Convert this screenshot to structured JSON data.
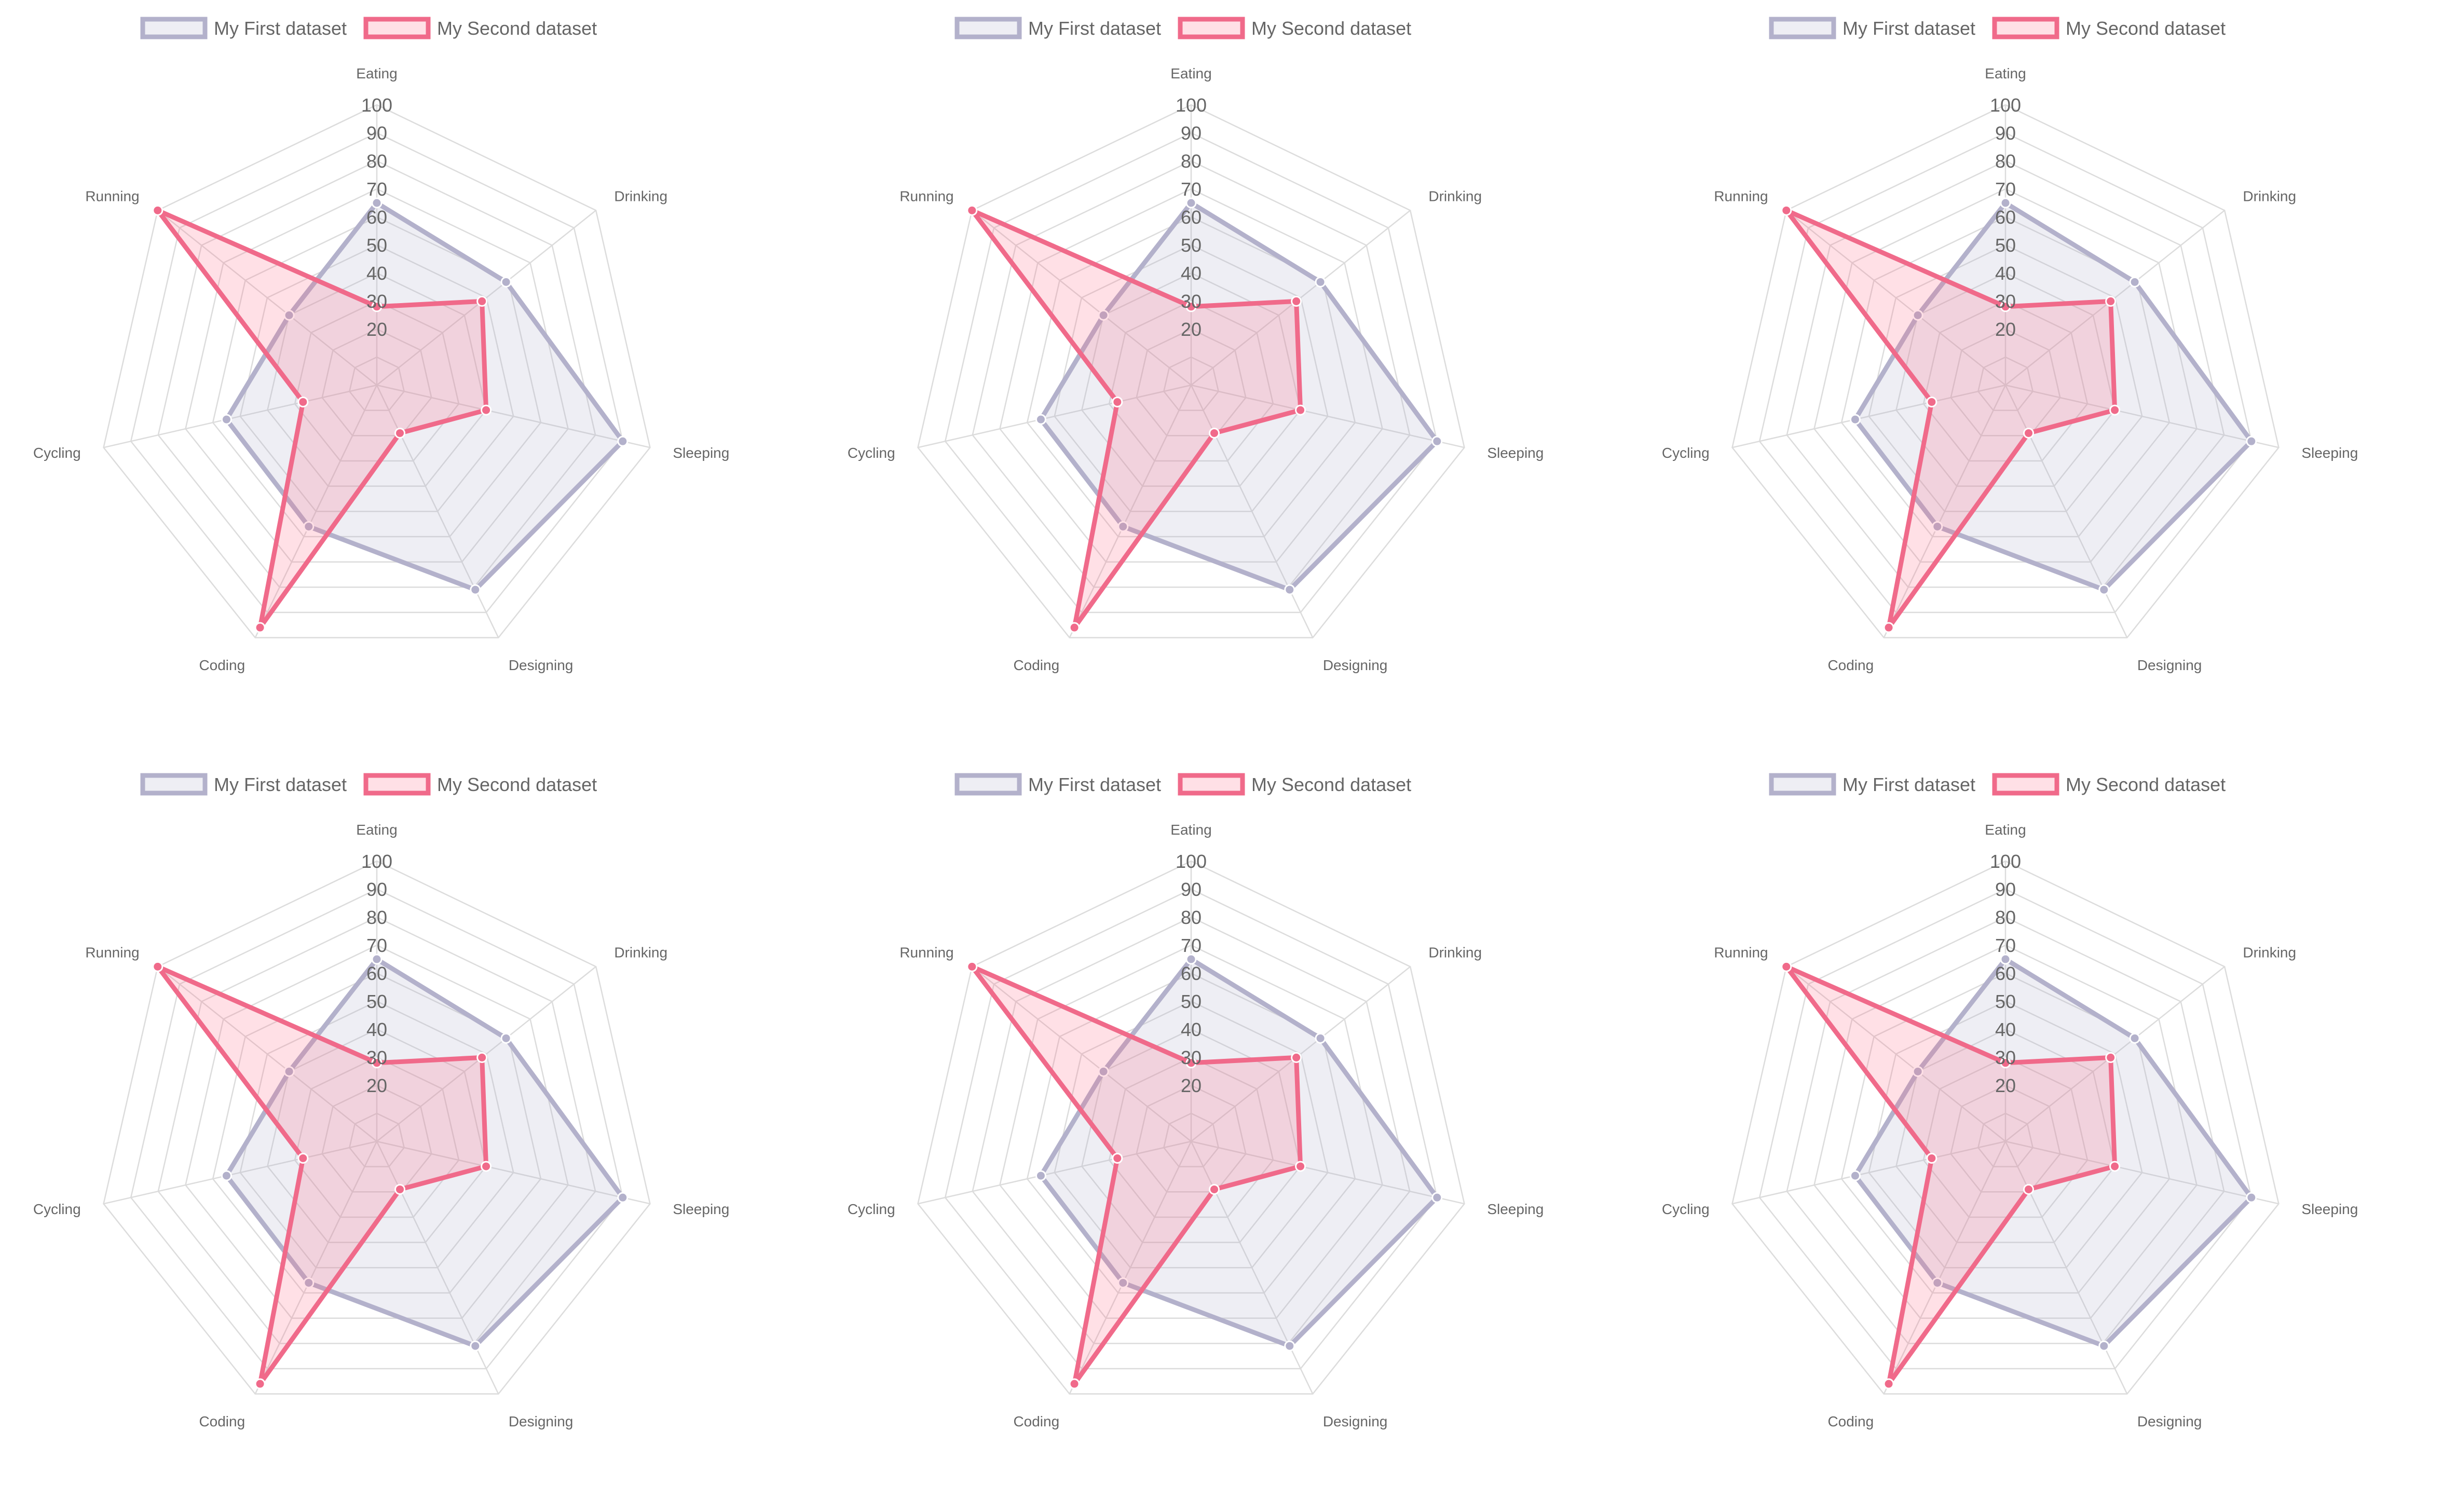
{
  "chart_data": [
    {
      "type": "radar",
      "labels": [
        "Eating",
        "Drinking",
        "Sleeping",
        "Designing",
        "Coding",
        "Cycling",
        "Running"
      ],
      "rlim": [
        0,
        100
      ],
      "ticks": [
        "20",
        "30",
        "40",
        "50",
        "60",
        "70",
        "80",
        "90",
        "100"
      ],
      "legend_position": "top",
      "series": [
        {
          "name": "My First dataset",
          "values": [
            65,
            59,
            90,
            81,
            56,
            55,
            40
          ],
          "color": "#b3b1cb",
          "fill": "rgba(179,177,203,0.22)"
        },
        {
          "name": "My Second dataset",
          "values": [
            28,
            48,
            40,
            19,
            96,
            27,
            100
          ],
          "color": "#f06a8a",
          "fill": "rgba(255,99,132,0.20)"
        }
      ]
    },
    {
      "type": "radar",
      "labels": [
        "Eating",
        "Drinking",
        "Sleeping",
        "Designing",
        "Coding",
        "Cycling",
        "Running"
      ],
      "rlim": [
        0,
        100
      ],
      "ticks": [
        "20",
        "30",
        "40",
        "50",
        "60",
        "70",
        "80",
        "90",
        "100"
      ],
      "legend_position": "top",
      "series": [
        {
          "name": "My First dataset",
          "values": [
            65,
            59,
            90,
            81,
            56,
            55,
            40
          ],
          "color": "#b3b1cb",
          "fill": "rgba(179,177,203,0.22)"
        },
        {
          "name": "My Second dataset",
          "values": [
            28,
            48,
            40,
            19,
            96,
            27,
            100
          ],
          "color": "#f06a8a",
          "fill": "rgba(255,99,132,0.20)"
        }
      ]
    },
    {
      "type": "radar",
      "labels": [
        "Eating",
        "Drinking",
        "Sleeping",
        "Designing",
        "Coding",
        "Cycling",
        "Running"
      ],
      "rlim": [
        0,
        100
      ],
      "ticks": [
        "20",
        "30",
        "40",
        "50",
        "60",
        "70",
        "80",
        "90",
        "100"
      ],
      "legend_position": "top",
      "series": [
        {
          "name": "My First dataset",
          "values": [
            65,
            59,
            90,
            81,
            56,
            55,
            40
          ],
          "color": "#b3b1cb",
          "fill": "rgba(179,177,203,0.22)"
        },
        {
          "name": "My Second dataset",
          "values": [
            28,
            48,
            40,
            19,
            96,
            27,
            100
          ],
          "color": "#f06a8a",
          "fill": "rgba(255,99,132,0.20)"
        }
      ]
    },
    {
      "type": "radar",
      "labels": [
        "Eating",
        "Drinking",
        "Sleeping",
        "Designing",
        "Coding",
        "Cycling",
        "Running"
      ],
      "rlim": [
        0,
        100
      ],
      "ticks": [
        "20",
        "30",
        "40",
        "50",
        "60",
        "70",
        "80",
        "90",
        "100"
      ],
      "legend_position": "top",
      "series": [
        {
          "name": "My First dataset",
          "values": [
            65,
            59,
            90,
            81,
            56,
            55,
            40
          ],
          "color": "#b3b1cb",
          "fill": "rgba(179,177,203,0.22)"
        },
        {
          "name": "My Second dataset",
          "values": [
            28,
            48,
            40,
            19,
            96,
            27,
            100
          ],
          "color": "#f06a8a",
          "fill": "rgba(255,99,132,0.20)"
        }
      ]
    },
    {
      "type": "radar",
      "labels": [
        "Eating",
        "Drinking",
        "Sleeping",
        "Designing",
        "Coding",
        "Cycling",
        "Running"
      ],
      "rlim": [
        0,
        100
      ],
      "ticks": [
        "20",
        "30",
        "40",
        "50",
        "60",
        "70",
        "80",
        "90",
        "100"
      ],
      "legend_position": "top",
      "series": [
        {
          "name": "My First dataset",
          "values": [
            65,
            59,
            90,
            81,
            56,
            55,
            40
          ],
          "color": "#b3b1cb",
          "fill": "rgba(179,177,203,0.22)"
        },
        {
          "name": "My Second dataset",
          "values": [
            28,
            48,
            40,
            19,
            96,
            27,
            100
          ],
          "color": "#f06a8a",
          "fill": "rgba(255,99,132,0.20)"
        }
      ]
    },
    {
      "type": "radar",
      "labels": [
        "Eating",
        "Drinking",
        "Sleeping",
        "Designing",
        "Coding",
        "Cycling",
        "Running"
      ],
      "rlim": [
        0,
        100
      ],
      "ticks": [
        "20",
        "30",
        "40",
        "50",
        "60",
        "70",
        "80",
        "90",
        "100"
      ],
      "legend_position": "top",
      "series": [
        {
          "name": "My First dataset",
          "values": [
            65,
            59,
            90,
            81,
            56,
            55,
            40
          ],
          "color": "#b3b1cb",
          "fill": "rgba(179,177,203,0.22)"
        },
        {
          "name": "My Second dataset",
          "values": [
            28,
            48,
            40,
            19,
            96,
            27,
            100
          ],
          "color": "#f06a8a",
          "fill": "rgba(255,99,132,0.20)"
        }
      ]
    }
  ]
}
